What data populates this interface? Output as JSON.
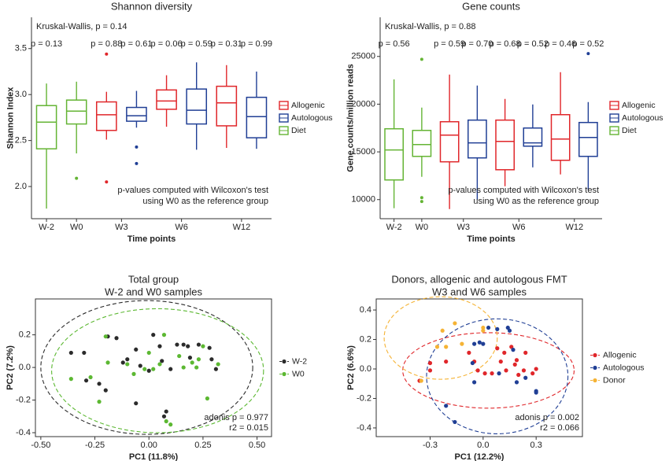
{
  "chart_data": [
    {
      "type": "box",
      "title": "Shannon diversity",
      "xlabel": "Time points",
      "ylabel": "Shannon Index",
      "annotation": "Kruskal-Wallis, p = 0.14",
      "note": [
        "p-values computed with Wilcoxon's test",
        "using W0 as the reference group"
      ],
      "legend": "right",
      "categories": [
        "W-2",
        "W0",
        "W3",
        "W6",
        "W12"
      ],
      "ylim": [
        1.65,
        3.84
      ],
      "yticks": [
        {
          "value": 2,
          "label": "2.0"
        },
        2.5,
        {
          "value": 3,
          "label": "3.0"
        },
        3.5
      ],
      "series": [
        {
          "name": "Allogenic",
          "color": "#e0262a",
          "values": [
            null,
            null,
            {
              "low": 2.51,
              "q1": 2.61,
              "median": 2.78,
              "q3": 2.92,
              "high": 3.03,
              "outliers": [
                3.44,
                2.05
              ]
            },
            {
              "low": 2.65,
              "q1": 2.84,
              "median": 2.93,
              "q3": 3.05,
              "high": 3.21
            },
            {
              "low": 2.42,
              "q1": 2.66,
              "median": 2.91,
              "q3": 3.09,
              "high": 3.32
            }
          ],
          "p_labels": [
            null,
            null,
            "p = 0.88",
            "p = 0.06",
            "p = 0.31"
          ]
        },
        {
          "name": "Autologous",
          "color": "#203f95",
          "values": [
            null,
            null,
            {
              "low": 2.64,
              "q1": 2.71,
              "median": 2.77,
              "q3": 2.86,
              "high": 3.04,
              "outliers": [
                2.43,
                2.25
              ]
            },
            {
              "low": 2.4,
              "q1": 2.68,
              "median": 2.83,
              "q3": 3.06,
              "high": 3.35
            },
            {
              "low": 2.41,
              "q1": 2.53,
              "median": 2.76,
              "q3": 2.97,
              "high": 3.25
            }
          ],
          "p_labels": [
            null,
            null,
            "p = 0.61",
            "p = 0.59",
            "p = 0.99"
          ]
        },
        {
          "name": "Diet",
          "color": "#64b434",
          "values": [
            {
              "low": 1.76,
              "q1": 2.41,
              "median": 2.7,
              "q3": 2.88,
              "high": 3.12
            },
            {
              "low": 2.36,
              "q1": 2.68,
              "median": 2.82,
              "q3": 2.94,
              "high": 3.14,
              "outliers": [
                2.09
              ]
            },
            null,
            null,
            null
          ],
          "p_labels": [
            "p = 0.13",
            null,
            null,
            null,
            null
          ]
        }
      ]
    },
    {
      "type": "box",
      "title": "Gene counts",
      "xlabel": "Time points",
      "ylabel": "Gene counts/million reads",
      "annotation": "Kruskal-Wallis, p = 0.88",
      "note": [
        "p-values computed with Wilcoxon's test",
        "using W0 as the reference group"
      ],
      "legend": "right",
      "categories": [
        "W-2",
        "W0",
        "W3",
        "W6",
        "W12"
      ],
      "ylim": [
        8000,
        29100
      ],
      "yticks": [
        10000,
        15000,
        20000,
        25000
      ],
      "series": [
        {
          "name": "Allogenic",
          "color": "#e0262a",
          "values": [
            null,
            null,
            {
              "low": 9010,
              "q1": 13960,
              "median": 16760,
              "q3": 18160,
              "high": 23100
            },
            {
              "low": 11400,
              "q1": 13130,
              "median": 16100,
              "q3": 18330,
              "high": 20550
            },
            {
              "low": 12640,
              "q1": 14120,
              "median": 16350,
              "q3": 18900,
              "high": 23350
            }
          ],
          "p_labels": [
            null,
            null,
            "p = 0.59",
            "p = 0.68",
            "p = 0.46"
          ]
        },
        {
          "name": "Autologous",
          "color": "#203f95",
          "values": [
            null,
            null,
            {
              "low": 10000,
              "q1": 14370,
              "median": 15940,
              "q3": 18330,
              "high": 21950
            },
            {
              "low": 13380,
              "q1": 15600,
              "median": 15940,
              "q3": 17500,
              "high": 19970
            },
            {
              "low": 11000,
              "q1": 14530,
              "median": 16510,
              "q3": 18080,
              "high": 20220,
              "outliers": [
                25300
              ]
            }
          ],
          "p_labels": [
            null,
            null,
            "p = 0.70",
            "p = 0.52",
            "p = 0.52"
          ]
        },
        {
          "name": "Diet",
          "color": "#64b434",
          "values": [
            {
              "low": 9100,
              "q1": 12060,
              "median": 15200,
              "q3": 17420,
              "high": 22600
            },
            {
              "low": 12390,
              "q1": 14530,
              "median": 15770,
              "q3": 17250,
              "high": 19640,
              "outliers": [
                24700,
                10200,
                9800
              ]
            },
            null,
            null,
            null
          ],
          "p_labels": [
            "p = 0.56",
            null,
            null,
            null,
            null
          ]
        }
      ]
    },
    {
      "type": "scatter",
      "title": "Total group",
      "subtitle": "W-2 and W0 samples",
      "xlabel": "PC1 (11.8%)",
      "ylabel": "PC2 (7.2%)",
      "note": [
        "adonis p = 0.977",
        "r2 = 0.015"
      ],
      "legend": "right",
      "xlim": [
        -0.525,
        0.567
      ],
      "ylim": [
        -0.424,
        0.42
      ],
      "xticks": [
        {
          "value": -0.5,
          "label": "-0.50"
        },
        -0.25,
        {
          "value": 0,
          "label": "0.00"
        },
        0.25,
        {
          "value": 0.5,
          "label": "0.50"
        }
      ],
      "yticks": [
        -0.4,
        -0.2,
        {
          "value": 0,
          "label": "0.0"
        },
        0.2
      ],
      "series": [
        {
          "name": "W-2",
          "color": "#2b2b2b",
          "x": [
            -0.36,
            -0.3,
            -0.29,
            -0.23,
            -0.2,
            -0.19,
            -0.15,
            -0.12,
            -0.1,
            -0.06,
            -0.04,
            0.0,
            0.02,
            0.05,
            0.06,
            0.08,
            0.1,
            0.13,
            0.16,
            0.18,
            0.19,
            0.23,
            0.28,
            0.29,
            0.31,
            -0.06,
            0.07
          ],
          "values": [
            0.09,
            0.09,
            -0.08,
            -0.1,
            -0.14,
            0.19,
            0.18,
            0.03,
            0.05,
            0.11,
            0.01,
            -0.02,
            0.2,
            0.13,
            0.04,
            -0.27,
            -0.01,
            0.14,
            0.14,
            0.13,
            0.06,
            0.14,
            0.12,
            0.05,
            -0.01,
            -0.22,
            -0.3
          ],
          "ellipse": {
            "cx": -0.01,
            "cy": 0.0,
            "rx": 0.49,
            "ry": 0.41
          }
        },
        {
          "name": "W0",
          "color": "#5cb832",
          "x": [
            -0.36,
            -0.27,
            -0.23,
            -0.2,
            -0.19,
            -0.1,
            -0.07,
            -0.02,
            0.0,
            0.02,
            0.07,
            0.08,
            0.1,
            0.14,
            0.16,
            0.2,
            0.23,
            0.25,
            0.22,
            0.32,
            0.27,
            0.05
          ],
          "values": [
            -0.07,
            -0.06,
            -0.21,
            0.19,
            0.03,
            0.02,
            -0.04,
            -0.01,
            0.09,
            -0.01,
            0.2,
            -0.33,
            -0.35,
            0.07,
            0.0,
            0.03,
            0.05,
            0.13,
            0.0,
            0.02,
            -0.19,
            0.02
          ],
          "ellipse": {
            "cx": 0.04,
            "cy": -0.02,
            "rx": 0.49,
            "ry": 0.38
          }
        }
      ]
    },
    {
      "type": "scatter",
      "title": "Donors, allogenic and autologous FMT",
      "subtitle": "W3 and W6 samples",
      "xlabel": "PC1 (12.2%)",
      "ylabel": "PC2 (6.6%)",
      "note": [
        "adonis p = 0.002",
        "r2 = 0.066"
      ],
      "legend": "right",
      "xlim": [
        -0.605,
        0.562
      ],
      "ylim": [
        -0.459,
        0.475
      ],
      "xticks": [
        -0.3,
        {
          "value": 0,
          "label": "0.0"
        },
        0.3
      ],
      "yticks": [
        -0.4,
        -0.2,
        {
          "value": 0,
          "label": "0.0"
        },
        0.2,
        0.4
      ],
      "series": [
        {
          "name": "Allogenic",
          "color": "#e0262a",
          "x": [
            -0.3,
            -0.3,
            -0.21,
            -0.08,
            -0.05,
            -0.03,
            0.01,
            0.05,
            0.08,
            0.1,
            0.12,
            0.13,
            0.16,
            0.18,
            0.19,
            0.2,
            0.23,
            0.24,
            0.28,
            0.3,
            -0.36
          ],
          "values": [
            0.04,
            -0.01,
            0.05,
            0.11,
            0.05,
            -0.01,
            -0.03,
            -0.03,
            0.14,
            0.05,
            0.11,
            -0.01,
            0.15,
            0.03,
            0.06,
            -0.04,
            -0.01,
            0.11,
            -0.03,
            0.0,
            -0.08
          ],
          "ellipse": {
            "cx": 0.03,
            "cy": -0.01,
            "rx": 0.485,
            "ry": 0.256
          }
        },
        {
          "name": "Autologous",
          "color": "#203f95",
          "x": [
            -0.21,
            -0.16,
            -0.06,
            -0.05,
            -0.02,
            0.0,
            0.03,
            0.08,
            0.14,
            0.15,
            0.17,
            0.19,
            0.24,
            0.3,
            0.3,
            -0.05,
            0.09
          ],
          "values": [
            -0.25,
            -0.36,
            0.04,
            -0.09,
            0.18,
            0.17,
            0.28,
            0.27,
            0.28,
            0.26,
            0.13,
            -0.09,
            -0.06,
            -0.15,
            -0.16,
            0.17,
            -0.03
          ],
          "ellipse": {
            "cx": 0.08,
            "cy": -0.05,
            "rx": 0.4,
            "ry": 0.39
          }
        },
        {
          "name": "Donor",
          "color": "#f5b335",
          "x": [
            -0.35,
            -0.26,
            -0.23,
            -0.21,
            -0.16,
            -0.12,
            0.0,
            0.0
          ],
          "values": [
            -0.08,
            0.15,
            0.26,
            0.15,
            0.31,
            0.17,
            0.28,
            0.26
          ],
          "ellipse": {
            "cx": -0.24,
            "cy": 0.21,
            "rx": 0.32,
            "ry": 0.28
          }
        }
      ]
    }
  ]
}
